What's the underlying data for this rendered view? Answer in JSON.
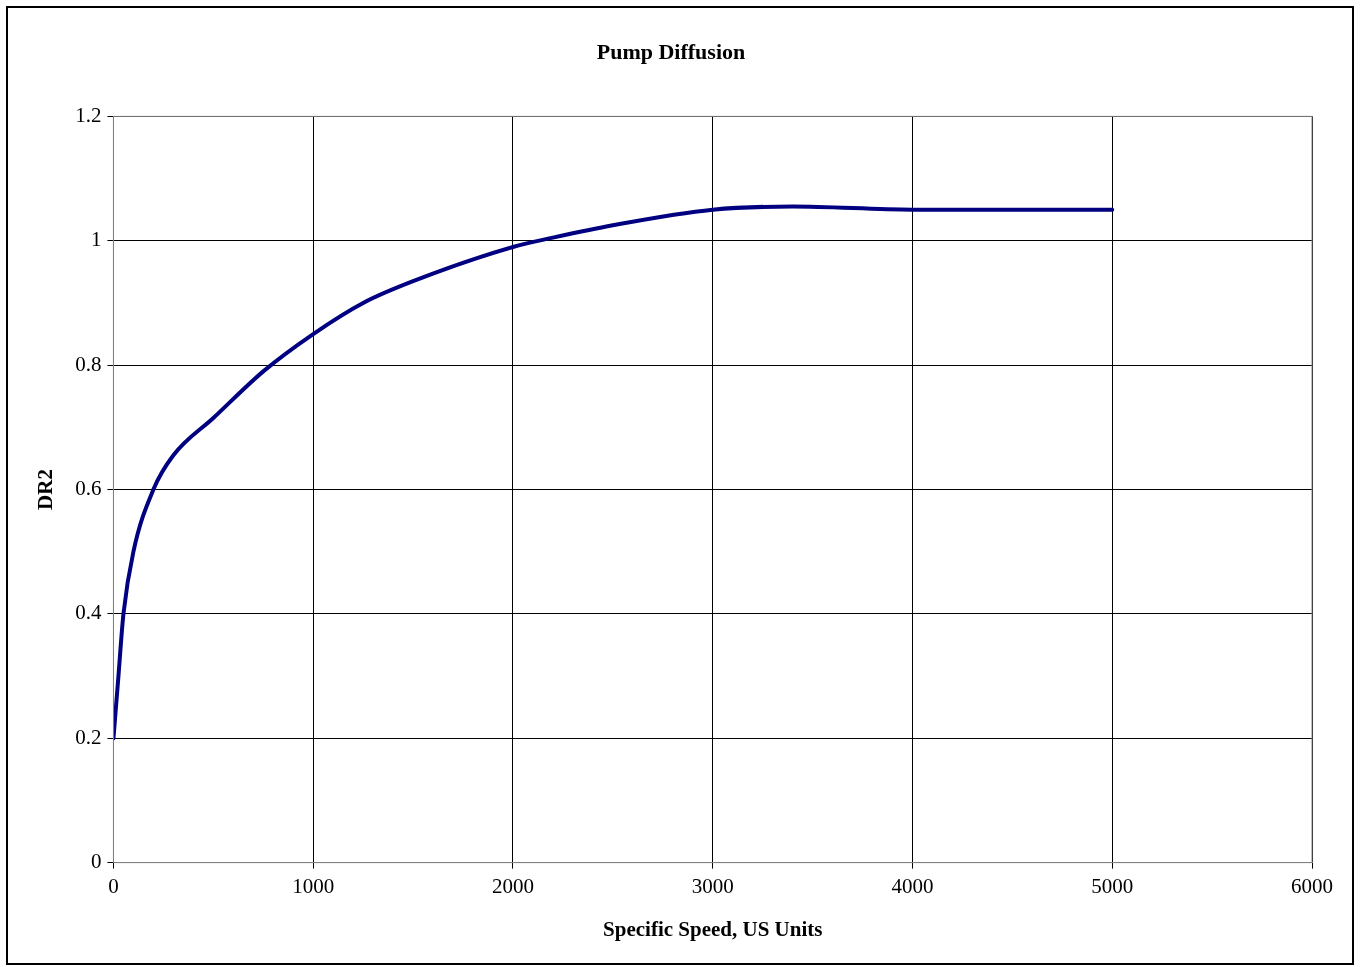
{
  "chart_data": {
    "type": "line",
    "title": "Pump Diffusion",
    "xlabel": "Specific Speed, US Units",
    "ylabel": "DR2",
    "x": [
      0,
      25,
      50,
      100,
      200,
      300,
      500,
      750,
      1000,
      1250,
      1500,
      2000,
      2200,
      2500,
      3000,
      3400,
      4000,
      5000
    ],
    "series": [
      {
        "color": "#000080",
        "values": [
          0.2,
          0.3,
          0.4,
          0.5,
          0.6,
          0.655,
          0.715,
          0.79,
          0.85,
          0.9,
          0.935,
          0.99,
          1.005,
          1.025,
          1.05,
          1.055,
          1.05,
          1.05
        ]
      }
    ],
    "xlim": [
      0,
      6000
    ],
    "xticks": [
      0,
      1000,
      2000,
      3000,
      4000,
      5000,
      6000
    ],
    "ylim": [
      0,
      1.2
    ],
    "yticks": [
      0,
      0.2,
      0.4,
      0.6,
      0.8,
      1,
      1.2
    ],
    "grid": true,
    "legend": false,
    "marker": "none",
    "line_style": "solid"
  }
}
